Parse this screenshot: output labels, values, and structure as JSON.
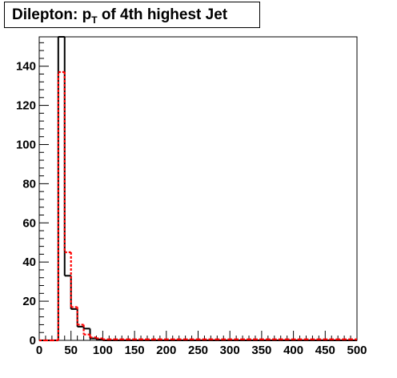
{
  "title": {
    "prefix": "Dilepton: p",
    "subscript": "T",
    "suffix": " of 4th highest Jet"
  },
  "chart_data": {
    "type": "histogram",
    "title": "Dilepton: p_T of 4th highest Jet",
    "xlabel": "",
    "ylabel": "",
    "xlim": [
      0,
      500
    ],
    "ylim": [
      0,
      155
    ],
    "bin_width": 10,
    "x_ticks": [
      0,
      50,
      100,
      150,
      200,
      250,
      300,
      350,
      400,
      450,
      500
    ],
    "y_ticks": [
      0,
      20,
      40,
      60,
      80,
      100,
      120,
      140
    ],
    "grid": false,
    "legend": "none",
    "series": [
      {
        "color": "#000000",
        "style": "solid",
        "bin_edges": [
          0,
          10,
          20,
          30,
          40,
          50,
          60,
          70,
          80,
          90,
          100,
          110,
          120,
          130,
          140,
          150,
          160,
          170,
          180,
          190,
          200,
          210,
          220,
          230,
          240,
          250,
          260,
          270,
          280,
          290,
          300,
          310,
          320,
          330,
          340,
          350,
          360,
          370,
          380,
          390,
          400,
          410,
          420,
          430,
          440,
          450,
          460,
          470,
          480,
          490,
          500
        ],
        "values": [
          0,
          0,
          0,
          155,
          33,
          16,
          7,
          6,
          1,
          0.5,
          0,
          0,
          0,
          0,
          0,
          0,
          0,
          0,
          0,
          0,
          0,
          0,
          0,
          0,
          0,
          0,
          0,
          0,
          0,
          0,
          0,
          0,
          0,
          0,
          0,
          0,
          0,
          0,
          0,
          0,
          0,
          0,
          0,
          0,
          0,
          0,
          0,
          0,
          0,
          0
        ]
      },
      {
        "color": "#ff0000",
        "style": "dotted",
        "bin_edges": [
          0,
          10,
          20,
          30,
          40,
          50,
          60,
          70,
          80,
          90,
          100,
          110,
          120,
          130,
          140,
          150,
          160,
          170,
          180,
          190,
          200,
          210,
          220,
          230,
          240,
          250,
          260,
          270,
          280,
          290,
          300,
          310,
          320,
          330,
          340,
          350,
          360,
          370,
          380,
          390,
          400,
          410,
          420,
          430,
          440,
          450,
          460,
          470,
          480,
          490,
          500
        ],
        "values": [
          0,
          0,
          0,
          137,
          45,
          17,
          8,
          3,
          1.5,
          1,
          0.5,
          0.5,
          0.5,
          0.5,
          0.5,
          0.5,
          0.5,
          0.5,
          0.5,
          0.5,
          0.5,
          0.5,
          0.5,
          0.5,
          0.5,
          0.5,
          0.5,
          0.5,
          0.5,
          0.5,
          0.5,
          0.5,
          0.5,
          0.5,
          0.5,
          0.5,
          0.5,
          0.5,
          0.5,
          0.5,
          0.5,
          0.5,
          0.5,
          0.5,
          0.5,
          0.5,
          0.5,
          0.5,
          0.5,
          0.5
        ]
      }
    ]
  }
}
